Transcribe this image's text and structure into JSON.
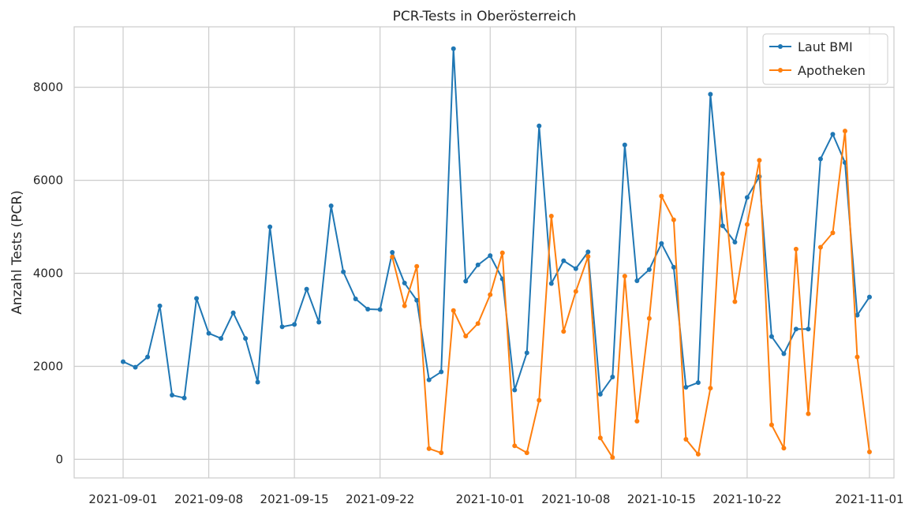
{
  "chart_data": {
    "type": "line",
    "title": "PCR-Tests in Oberösterreich",
    "xlabel": "",
    "ylabel": "Anzahl Tests (PCR)",
    "xlim": [
      "2021-08-28",
      "2021-11-03"
    ],
    "ylim": [
      -400,
      9300
    ],
    "grid": true,
    "legend_position": "top-right",
    "x_tick_labels": [
      "2021-09-01",
      "2021-09-08",
      "2021-09-15",
      "2021-09-22",
      "2021-10-01",
      "2021-10-08",
      "2021-10-15",
      "2021-10-22",
      "2021-11-01"
    ],
    "y_tick_labels": [
      "0",
      "2000",
      "4000",
      "6000",
      "8000"
    ],
    "series": [
      {
        "name": "Laut BMI",
        "color": "#1f77b4",
        "x": [
          "2021-09-01",
          "2021-09-02",
          "2021-09-03",
          "2021-09-04",
          "2021-09-05",
          "2021-09-06",
          "2021-09-07",
          "2021-09-08",
          "2021-09-09",
          "2021-09-10",
          "2021-09-11",
          "2021-09-12",
          "2021-09-13",
          "2021-09-14",
          "2021-09-15",
          "2021-09-16",
          "2021-09-17",
          "2021-09-18",
          "2021-09-19",
          "2021-09-20",
          "2021-09-21",
          "2021-09-22",
          "2021-09-23",
          "2021-09-24",
          "2021-09-25",
          "2021-09-26",
          "2021-09-27",
          "2021-09-28",
          "2021-09-29",
          "2021-09-30",
          "2021-10-01",
          "2021-10-02",
          "2021-10-03",
          "2021-10-04",
          "2021-10-05",
          "2021-10-06",
          "2021-10-07",
          "2021-10-08",
          "2021-10-09",
          "2021-10-10",
          "2021-10-11",
          "2021-10-12",
          "2021-10-13",
          "2021-10-14",
          "2021-10-15",
          "2021-10-16",
          "2021-10-17",
          "2021-10-18",
          "2021-10-19",
          "2021-10-20",
          "2021-10-21",
          "2021-10-22",
          "2021-10-23",
          "2021-10-24",
          "2021-10-25",
          "2021-10-26",
          "2021-10-27",
          "2021-10-28",
          "2021-10-29",
          "2021-10-30",
          "2021-10-31",
          "2021-11-01"
        ],
        "values": [
          2100,
          1980,
          2200,
          3300,
          1380,
          1320,
          3460,
          2710,
          2600,
          3150,
          2600,
          1660,
          5000,
          2850,
          2900,
          3660,
          2950,
          5450,
          4030,
          3450,
          3230,
          3220,
          4450,
          3790,
          3420,
          1710,
          1880,
          8830,
          3830,
          4180,
          4380,
          3880,
          1490,
          2290,
          7170,
          3780,
          4270,
          4100,
          4460,
          1400,
          1770,
          6760,
          3840,
          4080,
          4640,
          4130,
          1550,
          1650,
          7850,
          5020,
          4670,
          5630,
          6080,
          2640,
          2270,
          2800,
          2800,
          6460,
          6990,
          6380,
          3100,
          3490
        ]
      },
      {
        "name": "Apotheken",
        "color": "#ff7f0e",
        "x": [
          "2021-09-23",
          "2021-09-24",
          "2021-09-25",
          "2021-09-26",
          "2021-09-27",
          "2021-09-28",
          "2021-09-29",
          "2021-09-30",
          "2021-10-01",
          "2021-10-02",
          "2021-10-03",
          "2021-10-04",
          "2021-10-05",
          "2021-10-06",
          "2021-10-07",
          "2021-10-08",
          "2021-10-09",
          "2021-10-10",
          "2021-10-11",
          "2021-10-12",
          "2021-10-13",
          "2021-10-14",
          "2021-10-15",
          "2021-10-16",
          "2021-10-17",
          "2021-10-18",
          "2021-10-19",
          "2021-10-20",
          "2021-10-21",
          "2021-10-22",
          "2021-10-23",
          "2021-10-24",
          "2021-10-25",
          "2021-10-26",
          "2021-10-27",
          "2021-10-28",
          "2021-10-29",
          "2021-10-30",
          "2021-10-31",
          "2021-11-01"
        ],
        "values": [
          4350,
          3300,
          4150,
          230,
          140,
          3200,
          2650,
          2920,
          3540,
          4440,
          290,
          140,
          1270,
          5230,
          2750,
          3610,
          4360,
          460,
          40,
          3940,
          820,
          3030,
          5660,
          5150,
          430,
          110,
          1530,
          6140,
          3390,
          5050,
          6430,
          740,
          240,
          4520,
          980,
          4560,
          4870,
          7060,
          2200,
          160
        ]
      }
    ]
  }
}
